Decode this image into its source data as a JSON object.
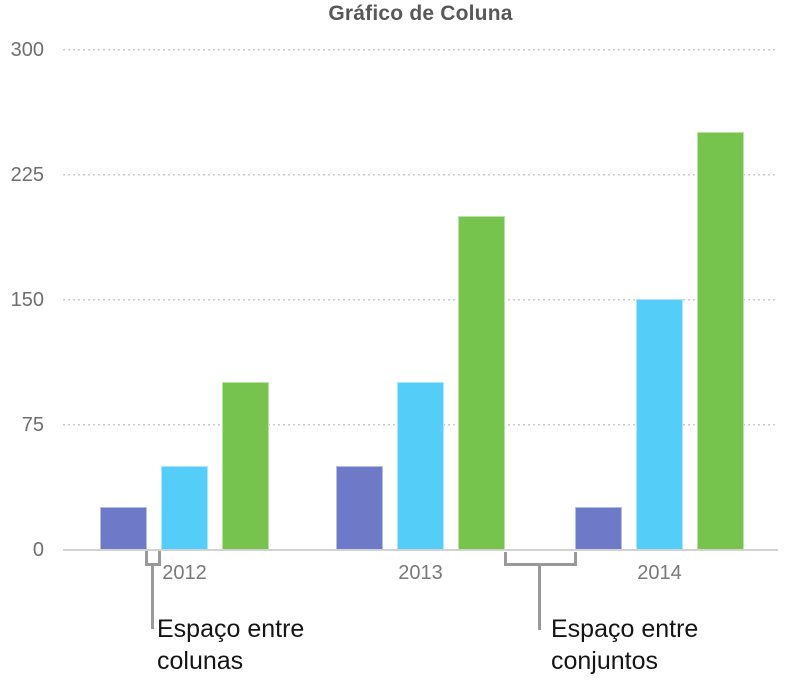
{
  "chart_data": {
    "type": "bar",
    "title": "Gráfico de Coluna",
    "categories": [
      "2012",
      "2013",
      "2014"
    ],
    "series": [
      {
        "color": "#6e79c7",
        "values": [
          25,
          50,
          25
        ]
      },
      {
        "color": "#54cdf8",
        "values": [
          50,
          100,
          150
        ]
      },
      {
        "color": "#76c44d",
        "values": [
          100,
          200,
          250
        ]
      }
    ],
    "ylim": [
      0,
      300
    ],
    "y_ticks": [
      0,
      75,
      150,
      225,
      300
    ],
    "y_tick_labels": [
      "0",
      "75",
      "150",
      "225",
      "300"
    ],
    "grid": "dotted-horizontal",
    "legend_position": "none",
    "axis_label_color": "#6e6e6e",
    "title_color": "#58585a"
  },
  "annotations": {
    "columns_gap": {
      "line1": "Espaço entre",
      "line2": "colunas"
    },
    "sets_gap": {
      "line1": "Espaço entre",
      "line2": "conjuntos"
    }
  }
}
